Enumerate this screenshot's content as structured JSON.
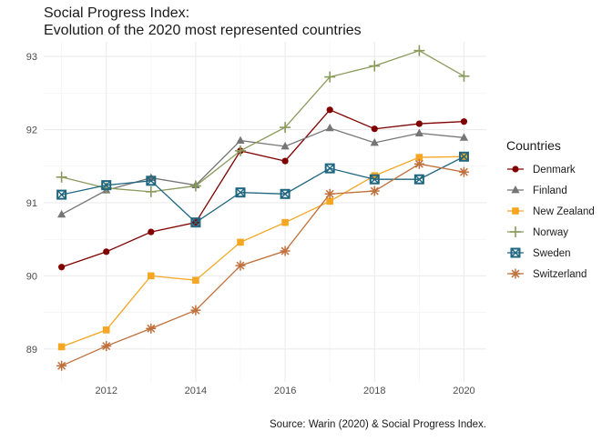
{
  "chart_data": {
    "type": "line",
    "title_line1": "Social Progress Index:",
    "title_line2": "Evolution of the 2020 most represented countries",
    "caption": "Source: Warin (2020) & Social Progress Index.",
    "xlabel": "",
    "ylabel": "",
    "x": [
      2011,
      2012,
      2013,
      2014,
      2015,
      2016,
      2017,
      2018,
      2019,
      2020
    ],
    "xlim": [
      2010.6,
      2020.5
    ],
    "ylim": [
      88.55,
      93.2
    ],
    "x_ticks": [
      2012,
      2014,
      2016,
      2018,
      2020
    ],
    "y_ticks": [
      89,
      90,
      91,
      92,
      93
    ],
    "grid": true,
    "legend": {
      "title": "Countries",
      "position": "right"
    },
    "series": [
      {
        "name": "Denmark",
        "color": "#800000",
        "marker": "circle",
        "values": [
          90.12,
          90.33,
          90.6,
          90.73,
          91.71,
          91.57,
          92.27,
          92.01,
          92.08,
          92.11
        ]
      },
      {
        "name": "Finland",
        "color": "#767676",
        "marker": "triangle",
        "values": [
          90.84,
          91.17,
          91.34,
          91.24,
          91.85,
          91.77,
          92.02,
          91.82,
          91.95,
          91.89
        ]
      },
      {
        "name": "New Zealand",
        "color": "#f5a623",
        "marker": "square",
        "values": [
          89.03,
          89.26,
          90.0,
          89.94,
          90.46,
          90.73,
          91.02,
          91.37,
          91.62,
          91.63
        ]
      },
      {
        "name": "Norway",
        "color": "#8a9a5b",
        "marker": "plus",
        "values": [
          91.35,
          91.2,
          91.15,
          91.23,
          91.71,
          92.03,
          92.72,
          92.87,
          93.08,
          92.73
        ]
      },
      {
        "name": "Sweden",
        "color": "#1f6680",
        "marker": "boxed-x",
        "values": [
          91.11,
          91.24,
          91.3,
          90.73,
          91.14,
          91.12,
          91.47,
          91.32,
          91.32,
          91.63
        ]
      },
      {
        "name": "Switzerland",
        "color": "#c0703b",
        "marker": "asterisk",
        "values": [
          88.77,
          89.04,
          89.28,
          89.53,
          90.14,
          90.34,
          91.12,
          91.16,
          91.53,
          91.42
        ]
      }
    ]
  }
}
